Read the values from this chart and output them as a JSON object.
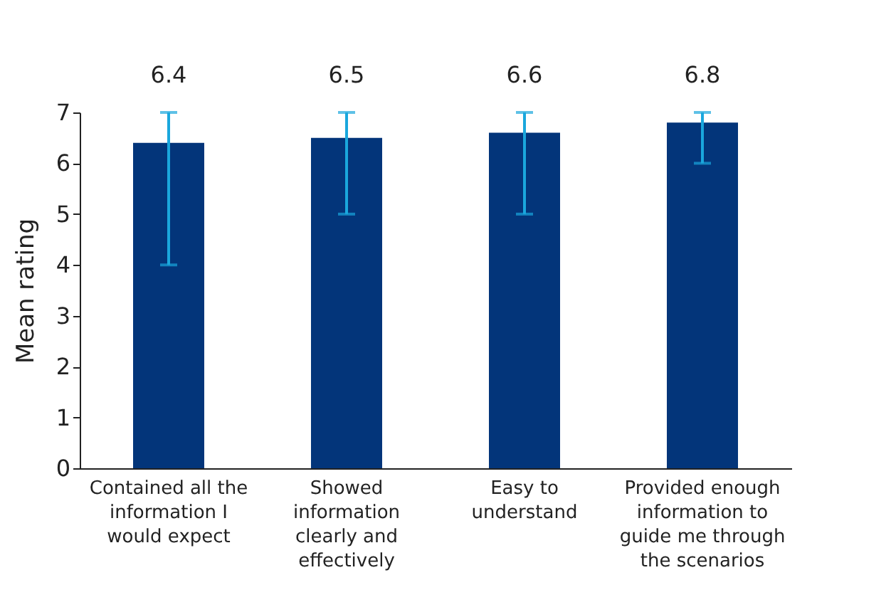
{
  "chart_data": {
    "type": "bar",
    "ylabel": "Mean rating",
    "categories": [
      "Contained all the information I would expect",
      "Showed information clearly and effectively",
      "Easy to understand",
      "Provided enough information to guide me through the scenarios"
    ],
    "values": [
      6.4,
      6.5,
      6.6,
      6.8
    ],
    "errors": [
      [
        4,
        7
      ],
      [
        5,
        7
      ],
      [
        5,
        7
      ],
      [
        6,
        7
      ]
    ],
    "color": "#03357a",
    "data_labels": true,
    "ylim": [
      0,
      7
    ],
    "yticks": [
      0,
      1,
      2,
      3,
      4,
      5,
      6,
      7
    ],
    "grid": false
  }
}
